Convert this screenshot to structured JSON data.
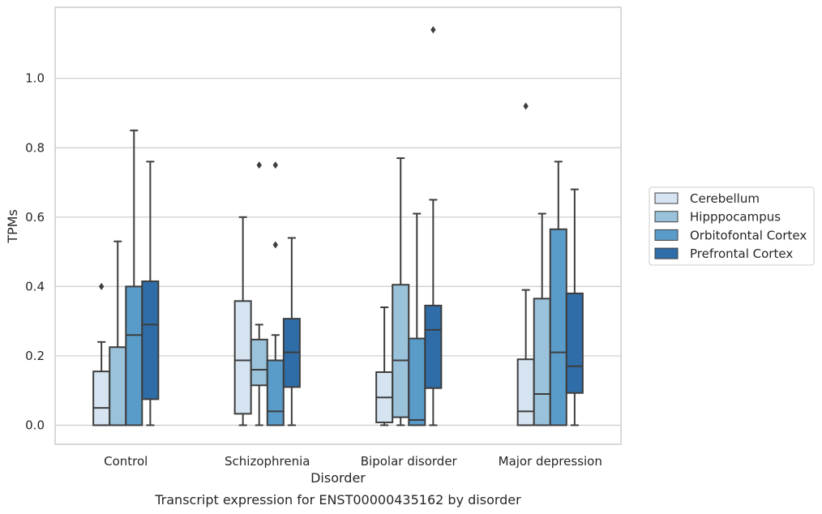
{
  "chart_data": {
    "type": "box",
    "caption": "Transcript expression for ENST00000435162 by disorder",
    "xlabel": "Disorder",
    "ylabel": "TPMs",
    "ylim": [
      -0.055,
      1.205
    ],
    "yticks": [
      0.0,
      0.2,
      0.4,
      0.6,
      0.8,
      1.0
    ],
    "ytick_labels": [
      "0.0",
      "0.2",
      "0.4",
      "0.6",
      "0.8",
      "1.0"
    ],
    "grid": "horizontal",
    "legend_position": "right, outside plot",
    "categories": [
      "Control",
      "Schizophrenia",
      "Bipolar disorder",
      "Major depression"
    ],
    "series": [
      {
        "name": "Cerebellum",
        "color": "#d6e4f2",
        "boxes": [
          {
            "min": 0.0,
            "q1": 0.0,
            "median": 0.05,
            "q3": 0.155,
            "max": 0.24,
            "outliers": [
              0.4
            ]
          },
          {
            "min": 0.0,
            "q1": 0.033,
            "median": 0.187,
            "q3": 0.358,
            "max": 0.6,
            "outliers": []
          },
          {
            "min": 0.0,
            "q1": 0.008,
            "median": 0.08,
            "q3": 0.153,
            "max": 0.34,
            "outliers": []
          },
          {
            "min": 0.0,
            "q1": 0.0,
            "median": 0.04,
            "q3": 0.19,
            "max": 0.39,
            "outliers": [
              0.92
            ]
          }
        ]
      },
      {
        "name": "Hipppocampus",
        "color": "#9ac3db",
        "boxes": [
          {
            "min": 0.0,
            "q1": 0.0,
            "median": 0.0,
            "q3": 0.225,
            "max": 0.53,
            "outliers": []
          },
          {
            "min": 0.0,
            "q1": 0.115,
            "median": 0.16,
            "q3": 0.247,
            "max": 0.29,
            "outliers": [
              0.75
            ]
          },
          {
            "min": 0.0,
            "q1": 0.023,
            "median": 0.187,
            "q3": 0.405,
            "max": 0.77,
            "outliers": []
          },
          {
            "min": 0.0,
            "q1": 0.0,
            "median": 0.09,
            "q3": 0.365,
            "max": 0.61,
            "outliers": []
          }
        ]
      },
      {
        "name": "Orbitofontal Cortex",
        "color": "#5a9cc9",
        "boxes": [
          {
            "min": 0.0,
            "q1": 0.0,
            "median": 0.26,
            "q3": 0.4,
            "max": 0.85,
            "outliers": []
          },
          {
            "min": 0.0,
            "q1": 0.0,
            "median": 0.04,
            "q3": 0.187,
            "max": 0.26,
            "outliers": [
              0.52,
              0.75
            ]
          },
          {
            "min": 0.0,
            "q1": 0.0,
            "median": 0.015,
            "q3": 0.25,
            "max": 0.61,
            "outliers": []
          },
          {
            "min": 0.0,
            "q1": 0.0,
            "median": 0.21,
            "q3": 0.565,
            "max": 0.76,
            "outliers": []
          }
        ]
      },
      {
        "name": "Prefrontal Cortex",
        "color": "#2e6da8",
        "boxes": [
          {
            "min": 0.0,
            "q1": 0.075,
            "median": 0.29,
            "q3": 0.415,
            "max": 0.76,
            "outliers": []
          },
          {
            "min": 0.0,
            "q1": 0.11,
            "median": 0.21,
            "q3": 0.307,
            "max": 0.54,
            "outliers": []
          },
          {
            "min": 0.0,
            "q1": 0.107,
            "median": 0.275,
            "q3": 0.345,
            "max": 0.65,
            "outliers": [
              1.14
            ]
          },
          {
            "min": 0.0,
            "q1": 0.093,
            "median": 0.17,
            "q3": 0.38,
            "max": 0.68,
            "outliers": []
          }
        ]
      }
    ]
  },
  "colors": {
    "edge": "#3d3d3d",
    "grid": "#cccccc",
    "frame": "#cccccc"
  }
}
